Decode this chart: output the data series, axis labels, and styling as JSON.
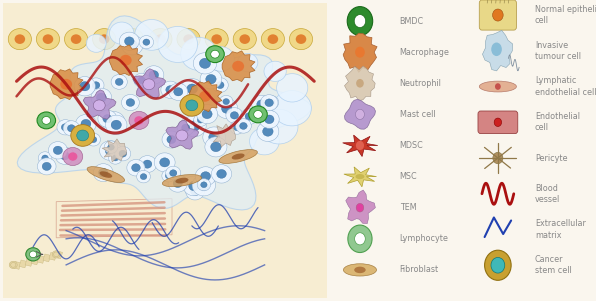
{
  "figsize": [
    5.96,
    3.01
  ],
  "dpi": 100,
  "bg_color": "#faf6ee",
  "left_legend": [
    {
      "label": "BMDC",
      "outer": "#2d8b2d",
      "inner": "#7ec87e"
    },
    {
      "label": "Macrophage",
      "outer": "#c87840",
      "inner": "#e8a870"
    },
    {
      "label": "Neutrophil",
      "outer": "#c8b890",
      "inner": "#e0d0c0"
    },
    {
      "label": "Mast cell",
      "outer": "#9878b8",
      "inner": "#c0a8d8"
    },
    {
      "label": "MDSC",
      "outer": "#c83030",
      "inner": "#e87060"
    },
    {
      "label": "MSC",
      "outer": "#d8c870",
      "inner": "#ece8a8"
    },
    {
      "label": "TEM",
      "outer": "#c080b8",
      "inner": "#d8a8d0"
    },
    {
      "label": "Lymphocyte",
      "outer": "#50a050",
      "inner": "#90c890"
    },
    {
      "label": "Fibroblast",
      "outer": "#c89850",
      "inner": "#e8c890"
    }
  ],
  "right_legend": [
    {
      "label": "Normal epithelial\ncell",
      "color": "#d8a840"
    },
    {
      "label": "Invasive\ntumour cell",
      "color": "#b0c8d8"
    },
    {
      "label": "Lymphatic\nendothelial cell",
      "color": "#d09080"
    },
    {
      "label": "Endothelial\ncell",
      "color": "#c87878"
    },
    {
      "label": "Pericyte",
      "color": "#a09060"
    },
    {
      "label": "Blood\nvessel",
      "color": "#bb1515"
    },
    {
      "label": "Extracellular\nmatrix",
      "color": "#2040b0"
    },
    {
      "label": "Cancer\nstem cell",
      "color": "#c8a030"
    }
  ],
  "text_color": "#888888",
  "label_fontsize": 5.8
}
